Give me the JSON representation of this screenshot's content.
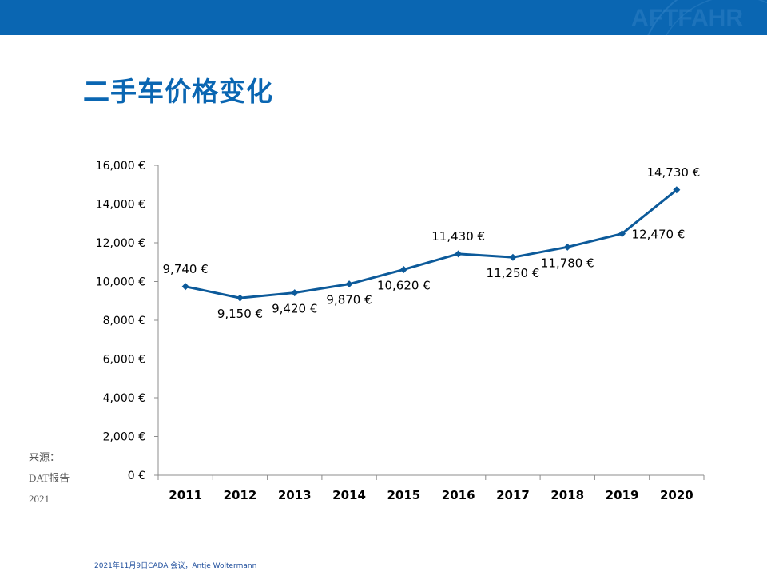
{
  "slide": {
    "title": "二手车价格变化",
    "source_label": "来源：",
    "source_report": "DAT报告",
    "source_year": "2021",
    "footer": "2021年11月9日CADA 会议，Antje Woltermann"
  },
  "colors": {
    "brand_blue": "#0a66b2",
    "line": "#0c5a9a",
    "axis": "#8c8c8c",
    "text": "#000000"
  },
  "chart_data": {
    "type": "line",
    "title": "二手车价格变化",
    "xlabel": "",
    "ylabel": "",
    "ylim": [
      0,
      16000
    ],
    "grid": false,
    "categories": [
      "2011",
      "2012",
      "2013",
      "2014",
      "2015",
      "2016",
      "2017",
      "2018",
      "2019",
      "2020"
    ],
    "y_ticks": [
      0,
      2000,
      4000,
      6000,
      8000,
      10000,
      12000,
      14000,
      16000
    ],
    "y_tick_labels": [
      "0 €",
      "2,000 €",
      "4,000 €",
      "6,000 €",
      "8,000 €",
      "10,000 €",
      "12,000 €",
      "14,000 €",
      "16,000 €"
    ],
    "series": [
      {
        "name": "二手车价格",
        "values": [
          9740,
          9150,
          9420,
          9870,
          10620,
          11430,
          11250,
          11780,
          12470,
          14730
        ],
        "labels": [
          "9,740 €",
          "9,150 €",
          "9,420 €",
          "9,870 €",
          "10,620 €",
          "11,430 €",
          "11,250 €",
          "11,780 €",
          "12,470 €",
          "14,730 €"
        ]
      }
    ]
  }
}
